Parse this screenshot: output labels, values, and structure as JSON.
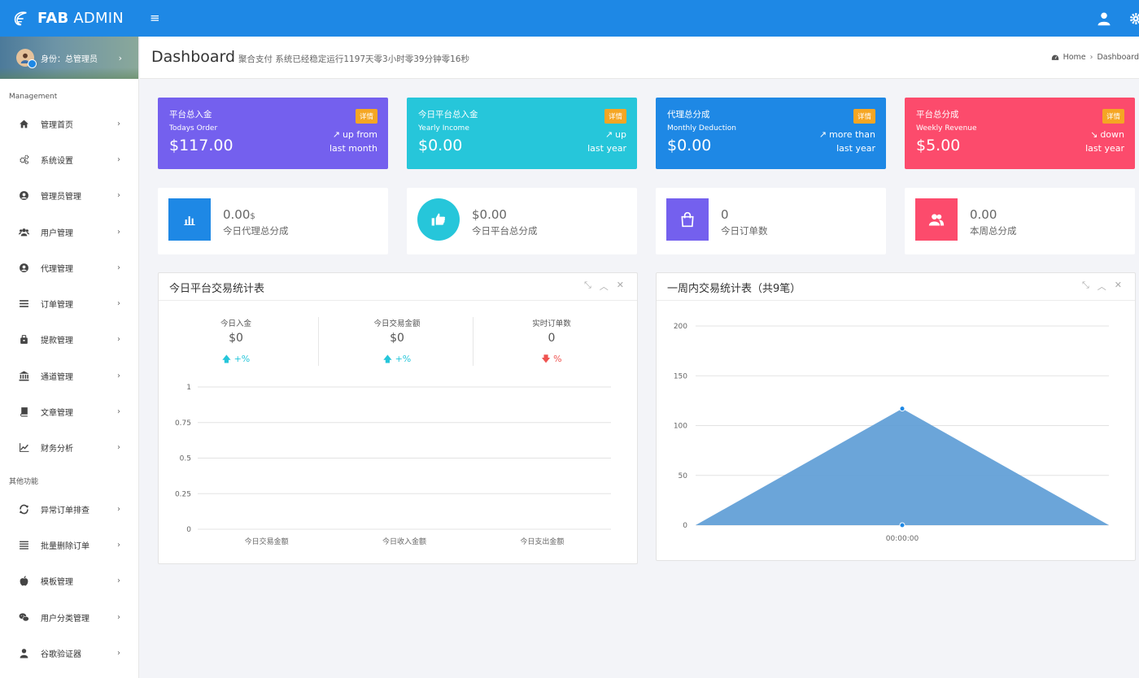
{
  "app": {
    "brand_bold": "FAB",
    "brand_rest": "ADMIN",
    "menu_toggle": "≡"
  },
  "sidebar": {
    "profile_label": "身份：总管理员",
    "sections": [
      {
        "title": "Management",
        "items": [
          {
            "label": "管理首页",
            "icon": "home-icon"
          },
          {
            "label": "系统设置",
            "icon": "cogs-icon"
          },
          {
            "label": "管理员管理",
            "icon": "user-circle-icon"
          },
          {
            "label": "用户管理",
            "icon": "users-icon"
          },
          {
            "label": "代理管理",
            "icon": "user-circle-icon"
          },
          {
            "label": "订单管理",
            "icon": "bars-icon"
          },
          {
            "label": "提款管理",
            "icon": "briefcase-icon"
          },
          {
            "label": "通道管理",
            "icon": "bank-icon"
          },
          {
            "label": "文章管理",
            "icon": "book-icon"
          },
          {
            "label": "财务分析",
            "icon": "line-chart-icon"
          }
        ]
      },
      {
        "title": "其他功能",
        "items": [
          {
            "label": "异常订单排查",
            "icon": "refresh-icon"
          },
          {
            "label": "批量删除订单",
            "icon": "list-icon"
          },
          {
            "label": "模板管理",
            "icon": "apple-icon"
          },
          {
            "label": "用户分类管理",
            "icon": "wechat-icon"
          },
          {
            "label": "谷歌验证器",
            "icon": "user-icon"
          }
        ]
      }
    ]
  },
  "header": {
    "title": "Dashboard",
    "subtitle": "聚合支付 系统已经稳定运行1197天零3小时零39分钟零16秒",
    "breadcrumb": {
      "home": "Home",
      "sep": "›",
      "current": "Dashboard"
    }
  },
  "stat_cards": [
    {
      "title": "平台总入金",
      "sub": "Todays Order",
      "value": "$117.00",
      "badge": "详情",
      "trend_icon": "trend-up-icon",
      "trend1": "up from",
      "trend2": "last month",
      "color": "#7460ee"
    },
    {
      "title": "今日平台总入金",
      "sub": "Yearly Income",
      "value": "$0.00",
      "badge": "详情",
      "trend_icon": "trend-up-icon",
      "trend1": "up",
      "trend2": "last year",
      "color": "#26c6da"
    },
    {
      "title": "代理总分成",
      "sub": "Monthly Deduction",
      "value": "$0.00",
      "badge": "详情",
      "trend_icon": "trend-up-icon",
      "trend1": "more than",
      "trend2": "last year",
      "color": "#1e88e5"
    },
    {
      "title": "平台总分成",
      "sub": "Weekly Revenue",
      "value": "$5.00",
      "badge": "详情",
      "trend_icon": "trend-down-icon",
      "trend1": "down",
      "trend2": "last year",
      "color": "#fc4b6c"
    }
  ],
  "info_cards": [
    {
      "value": "0.00",
      "unit": "$",
      "label": "今日代理总分成",
      "icon": "bar-chart-icon",
      "color": "#1e88e5"
    },
    {
      "value": "$0.00",
      "unit": "",
      "label": "今日平台总分成",
      "icon": "thumbs-up-icon",
      "color": "#26c6da"
    },
    {
      "value": "0",
      "unit": "",
      "label": "今日订单数",
      "icon": "shopping-bag-icon",
      "color": "#7460ee"
    },
    {
      "value": "0.00",
      "unit": "",
      "label": "本周总分成",
      "icon": "users-icon",
      "color": "#fc4b6c"
    }
  ],
  "panel_today": {
    "title": "今日平台交易统计表",
    "tools": [
      "⤡",
      "︿",
      "✕"
    ],
    "stats": [
      {
        "label": "今日入金",
        "value": "$0",
        "arrow": "🡅",
        "pct": "+%",
        "dir": "up"
      },
      {
        "label": "今日交易金额",
        "value": "$0",
        "arrow": "🡅",
        "pct": "+%",
        "dir": "up"
      },
      {
        "label": "实时订单数",
        "value": "0",
        "arrow": "🡇",
        "pct": "%",
        "dir": "down"
      }
    ]
  },
  "panel_week": {
    "title": "一周内交易统计表（共9笔）",
    "tools": [
      "⤡",
      "︿",
      "✕"
    ]
  },
  "chart_data": [
    {
      "type": "bar",
      "categories": [
        "今日交易金额",
        "今日收入金额",
        "今日支出金额"
      ],
      "values": [
        0,
        0,
        0
      ],
      "yticks": [
        "0",
        "0.25",
        "0.5",
        "0.75",
        "1"
      ],
      "ylim": [
        0,
        1
      ],
      "grid": true
    },
    {
      "type": "area",
      "x": [
        "",
        "00:00:00",
        ""
      ],
      "values": [
        0,
        117,
        0
      ],
      "yticks": [
        "0",
        "50",
        "100",
        "150",
        "200"
      ],
      "ylim": [
        0,
        200
      ],
      "grid": true,
      "color": "#5b9bd5"
    }
  ]
}
